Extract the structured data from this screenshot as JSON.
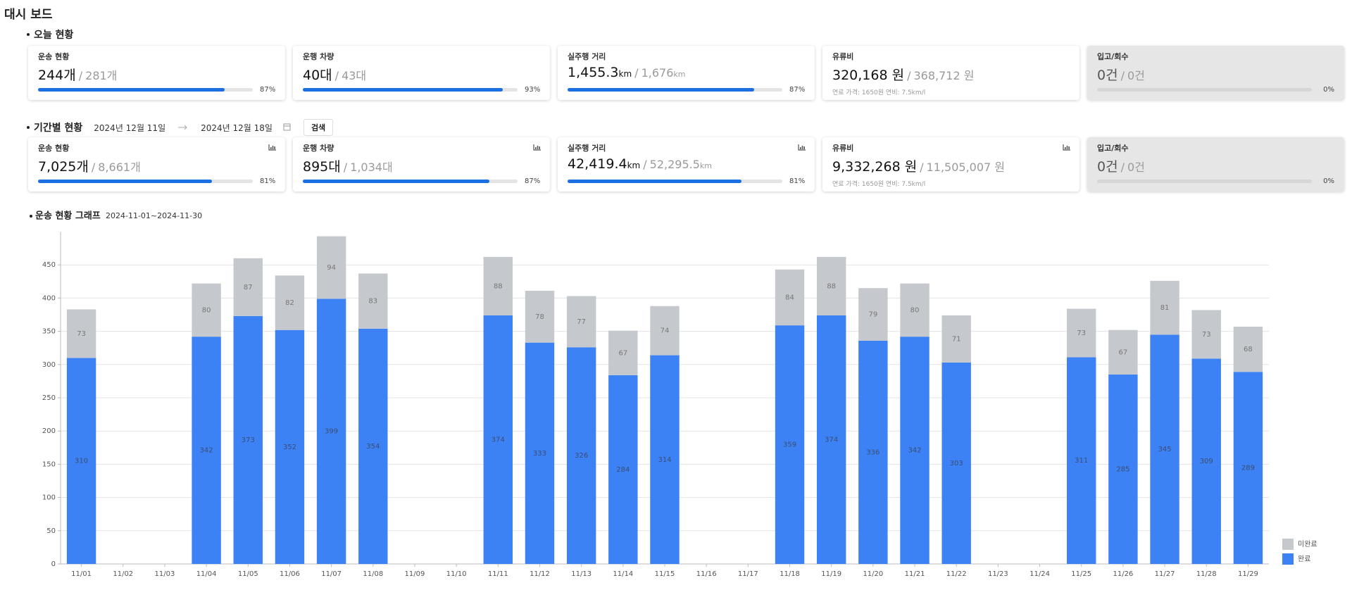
{
  "title": "대시 보드",
  "separator": "/",
  "today": {
    "title": "오늘 현황",
    "cards": [
      {
        "label": "운송 현황",
        "value": "244개",
        "total": "281개",
        "progress": "87%"
      },
      {
        "label": "운행 차량",
        "value": "40대",
        "total": "43대",
        "progress": "93%"
      },
      {
        "label": "실주행 거리",
        "value": "1,455.3",
        "value_unit": "km",
        "total": "1,676",
        "total_unit": "km",
        "progress": "87%"
      },
      {
        "label": "유류비",
        "value": "320,168 원",
        "total": "368,712 원",
        "note": "연료 가격: 1650원 연비: 7.5km/l"
      },
      {
        "label": "입고/회수",
        "value": "0건",
        "total": "0건",
        "progress": "0%",
        "disabled": true
      }
    ]
  },
  "period": {
    "title": "기간별 현황",
    "date_start": "2024년 12월 11일",
    "date_end": "2024년 12월 18일",
    "button": "검색",
    "cards": [
      {
        "label": "운송 현황",
        "value": "7,025개",
        "total": "8,661개",
        "progress": "81%",
        "icon": true
      },
      {
        "label": "운행 차량",
        "value": "895대",
        "total": "1,034대",
        "progress": "87%",
        "icon": true
      },
      {
        "label": "실주행 거리",
        "value": "42,419.4",
        "value_unit": "km",
        "total": "52,295.5",
        "total_unit": "km",
        "progress": "81%",
        "icon": true
      },
      {
        "label": "유류비",
        "value": "9,332,268 원",
        "total": "11,505,007 원",
        "note": "연료 가격: 1650원 연비: 7.5km/l",
        "icon": true
      },
      {
        "label": "입고/회수",
        "value": "0건",
        "total": "0건",
        "progress": "0%",
        "disabled": true
      }
    ]
  },
  "chart_data": {
    "type": "bar",
    "stacked": true,
    "title": "운송 현황 그래프",
    "subtitle": "2024-11-01~2024-11-30",
    "categories": [
      "11/01",
      "11/02",
      "11/03",
      "11/04",
      "11/05",
      "11/06",
      "11/07",
      "11/08",
      "11/09",
      "11/10",
      "11/11",
      "11/12",
      "11/13",
      "11/14",
      "11/15",
      "11/16",
      "11/17",
      "11/18",
      "11/19",
      "11/20",
      "11/21",
      "11/22",
      "11/23",
      "11/24",
      "11/25",
      "11/26",
      "11/27",
      "11/28",
      "11/29"
    ],
    "series": [
      {
        "name": "완료",
        "color": "#3d82f4",
        "label_color": "#3b4d72",
        "values": [
          310,
          null,
          null,
          342,
          373,
          352,
          399,
          354,
          null,
          null,
          374,
          333,
          326,
          284,
          314,
          null,
          null,
          359,
          374,
          336,
          342,
          303,
          null,
          null,
          311,
          285,
          345,
          309,
          289
        ]
      },
      {
        "name": "미완료",
        "color": "#c5c8cd",
        "label_color": "#777777",
        "values": [
          73,
          null,
          null,
          80,
          87,
          82,
          94,
          83,
          null,
          null,
          88,
          78,
          77,
          67,
          74,
          null,
          null,
          84,
          88,
          79,
          80,
          71,
          null,
          null,
          73,
          67,
          81,
          73,
          68
        ]
      }
    ],
    "ylim": [
      0,
      500
    ],
    "yticks": [
      0,
      50,
      100,
      150,
      200,
      250,
      300,
      350,
      400,
      450
    ],
    "grid": true,
    "legend": "bottom-right"
  }
}
